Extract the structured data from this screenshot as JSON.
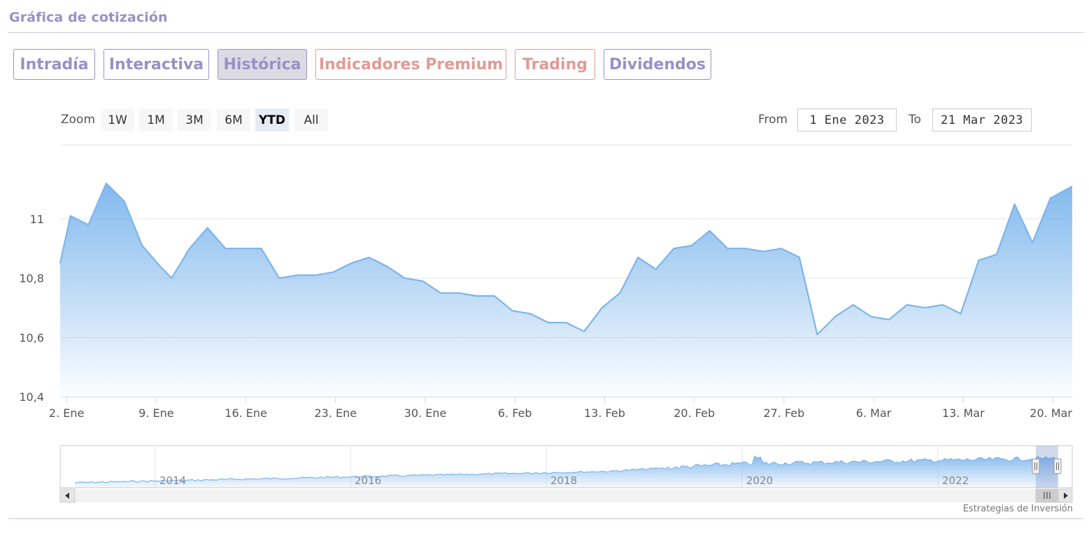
{
  "header": {
    "title": "Gráfica de cotización"
  },
  "tabs": [
    {
      "label": "Intradía",
      "kind": "normal",
      "active": false
    },
    {
      "label": "Interactiva",
      "kind": "normal",
      "active": false
    },
    {
      "label": "Histórica",
      "kind": "normal",
      "active": true
    },
    {
      "label": "Indicadores Premium",
      "kind": "premium",
      "active": false
    },
    {
      "label": "Trading",
      "kind": "premium",
      "active": false
    },
    {
      "label": "Dividendos",
      "kind": "normal",
      "active": false
    }
  ],
  "zoom": {
    "label": "Zoom",
    "buttons": [
      "1W",
      "1M",
      "3M",
      "6M",
      "YTD",
      "All"
    ],
    "selected": "YTD"
  },
  "range": {
    "from_label": "From",
    "from_value": "1 Ene 2023",
    "to_label": "To",
    "to_value": "21 Mar 2023"
  },
  "credit": "Estrategias de Inversión",
  "colors": {
    "accent": "#9b8fc8",
    "premium": "#e29b95",
    "series_line": "#7cb5ec"
  },
  "chart_data": {
    "type": "area",
    "yticks": [
      "10,4",
      "10,6",
      "10,8",
      "11"
    ],
    "ylim": [
      10.4,
      11.25
    ],
    "xticks": [
      {
        "label": "2. Ene",
        "day": 1
      },
      {
        "label": "9. Ene",
        "day": 8
      },
      {
        "label": "16. Ene",
        "day": 15
      },
      {
        "label": "23. Ene",
        "day": 22
      },
      {
        "label": "30. Ene",
        "day": 29
      },
      {
        "label": "6. Feb",
        "day": 36
      },
      {
        "label": "13. Feb",
        "day": 43
      },
      {
        "label": "20. Feb",
        "day": 50
      },
      {
        "label": "27. Feb",
        "day": 57
      },
      {
        "label": "6. Mar",
        "day": 64
      },
      {
        "label": "13. Mar",
        "day": 71
      },
      {
        "label": "20. Mar",
        "day": 78
      }
    ],
    "xlim": [
      0.5,
      79.5
    ],
    "series": [
      {
        "points": [
          [
            0.5,
            10.85
          ],
          [
            1.3,
            11.01
          ],
          [
            2.7,
            10.98
          ],
          [
            4.1,
            11.12
          ],
          [
            5.5,
            11.06
          ],
          [
            6.9,
            10.91
          ],
          [
            8.3,
            10.84
          ],
          [
            9.2,
            10.8
          ],
          [
            10.6,
            10.9
          ],
          [
            12.0,
            10.97
          ],
          [
            13.4,
            10.9
          ],
          [
            14.8,
            10.9
          ],
          [
            16.2,
            10.9
          ],
          [
            17.6,
            10.8
          ],
          [
            19.0,
            10.81
          ],
          [
            20.4,
            10.81
          ],
          [
            21.8,
            10.82
          ],
          [
            23.2,
            10.85
          ],
          [
            24.6,
            10.87
          ],
          [
            26.0,
            10.84
          ],
          [
            27.4,
            10.8
          ],
          [
            28.8,
            10.79
          ],
          [
            30.2,
            10.75
          ],
          [
            31.6,
            10.75
          ],
          [
            33.0,
            10.74
          ],
          [
            34.4,
            10.74
          ],
          [
            35.8,
            10.69
          ],
          [
            37.2,
            10.68
          ],
          [
            38.6,
            10.65
          ],
          [
            40.0,
            10.65
          ],
          [
            41.4,
            10.62
          ],
          [
            42.8,
            10.7
          ],
          [
            44.2,
            10.75
          ],
          [
            45.6,
            10.87
          ],
          [
            47.0,
            10.83
          ],
          [
            48.4,
            10.9
          ],
          [
            49.8,
            10.91
          ],
          [
            51.2,
            10.96
          ],
          [
            52.6,
            10.9
          ],
          [
            54.0,
            10.9
          ],
          [
            55.4,
            10.89
          ],
          [
            56.8,
            10.9
          ],
          [
            58.2,
            10.87
          ],
          [
            59.6,
            10.61
          ],
          [
            61.0,
            10.67
          ],
          [
            62.4,
            10.71
          ],
          [
            63.8,
            10.67
          ],
          [
            65.2,
            10.66
          ],
          [
            66.6,
            10.71
          ],
          [
            68.0,
            10.7
          ],
          [
            69.4,
            10.71
          ],
          [
            70.8,
            10.68
          ],
          [
            72.2,
            10.86
          ],
          [
            73.6,
            10.88
          ],
          [
            75.0,
            11.05
          ],
          [
            76.4,
            10.92
          ],
          [
            77.8,
            11.07
          ],
          [
            79.5,
            11.11
          ]
        ]
      }
    ],
    "navigator": {
      "year_labels": [
        "2014",
        "2016",
        "2018",
        "2020",
        "2022"
      ]
    }
  }
}
